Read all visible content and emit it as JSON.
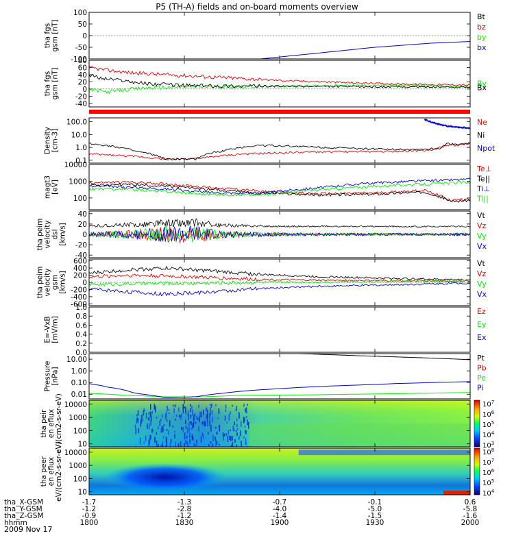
{
  "title": "P5 (TH-A) fields and on-board moments overview",
  "date_label": "2009 Nov 17",
  "colors": {
    "black": "#000000",
    "red": "#dd0000",
    "green": "#00ee00",
    "blue": "#0000cc",
    "axis": "#000000",
    "stripe": "#ff0000"
  },
  "chart_data": [
    {
      "id": "mag-gse",
      "type": "line",
      "ylabel": "tha fgs gsm [nT]",
      "yticks": [
        "100",
        "50",
        "0",
        "-50",
        "-100"
      ],
      "yrange": [
        -100,
        100
      ],
      "scale": "linear",
      "series": [
        {
          "name": "Bt",
          "color": "#000000"
        },
        {
          "name": "bz",
          "color": "#dd0000"
        },
        {
          "name": "by",
          "color": "#00ee00"
        },
        {
          "name": "bx",
          "color": "#0000cc",
          "points": [
            [
              0.45,
              -100
            ],
            [
              0.6,
              -75
            ],
            [
              0.75,
              -50
            ],
            [
              0.9,
              -32
            ],
            [
              1.0,
              -25
            ]
          ]
        }
      ]
    },
    {
      "id": "mag-gsm",
      "type": "line",
      "ylabel": "tha fgs gsm [nT]",
      "yticks": [
        "80",
        "60",
        "40",
        "20",
        "0",
        "-20",
        "-40"
      ],
      "yrange": [
        -50,
        80
      ],
      "scale": "linear",
      "series": [
        {
          "name": "Bt",
          "color": "#dd0000",
          "points": [
            [
              0,
              60
            ],
            [
              0.05,
              52
            ],
            [
              0.1,
              46
            ],
            [
              0.2,
              40
            ],
            [
              0.35,
              32
            ],
            [
              0.5,
              24
            ],
            [
              0.7,
              17
            ],
            [
              0.85,
              13
            ],
            [
              1.0,
              11
            ]
          ]
        },
        {
          "name": "By",
          "color": "#00ee00",
          "points": [
            [
              0,
              -2
            ],
            [
              0.05,
              -8
            ],
            [
              0.1,
              -2
            ],
            [
              0.15,
              3
            ],
            [
              0.25,
              6
            ],
            [
              0.4,
              7
            ],
            [
              0.55,
              8
            ],
            [
              0.7,
              10
            ],
            [
              0.85,
              9
            ],
            [
              1.0,
              7
            ]
          ]
        },
        {
          "name": "Bx",
          "color": "#000000",
          "points": [
            [
              0,
              40
            ],
            [
              0.03,
              30
            ],
            [
              0.08,
              25
            ],
            [
              0.15,
              15
            ],
            [
              0.25,
              10
            ],
            [
              0.4,
              8
            ],
            [
              0.6,
              7
            ],
            [
              0.8,
              6
            ],
            [
              1.0,
              5
            ]
          ]
        }
      ],
      "legend": [
        "By",
        "Bx"
      ]
    },
    {
      "id": "density",
      "type": "line",
      "ylabel": "Density [cm-3]",
      "yticks": [
        "100.0",
        "10.0",
        "1.0",
        "0.1"
      ],
      "yrange": [
        0.06,
        200
      ],
      "scale": "log",
      "series": [
        {
          "name": "Ne",
          "color": "#dd0000",
          "points": [
            [
              0,
              0.3
            ],
            [
              0.1,
              0.22
            ],
            [
              0.2,
              0.12
            ],
            [
              0.3,
              0.15
            ],
            [
              0.4,
              0.3
            ],
            [
              0.6,
              0.45
            ],
            [
              0.8,
              0.5
            ],
            [
              0.9,
              0.6
            ],
            [
              0.93,
              1.2
            ],
            [
              0.96,
              1.5
            ],
            [
              1.0,
              2
            ]
          ]
        },
        {
          "name": "Ni",
          "color": "#000000",
          "points": [
            [
              0,
              2
            ],
            [
              0.05,
              1.4
            ],
            [
              0.12,
              0.5
            ],
            [
              0.2,
              0.12
            ],
            [
              0.28,
              0.12
            ],
            [
              0.36,
              0.6
            ],
            [
              0.45,
              1.5
            ],
            [
              0.55,
              1.2
            ],
            [
              0.7,
              0.8
            ],
            [
              0.85,
              0.7
            ],
            [
              0.92,
              0.8
            ],
            [
              0.94,
              2
            ],
            [
              0.97,
              1.6
            ],
            [
              1.0,
              2.2
            ]
          ]
        },
        {
          "name": "Npot",
          "color": "#0000cc",
          "points": [
            [
              0.88,
              150
            ],
            [
              0.9,
              90
            ],
            [
              0.92,
              60
            ],
            [
              0.94,
              45
            ],
            [
              0.97,
              38
            ],
            [
              1.0,
              32
            ]
          ]
        }
      ]
    },
    {
      "id": "temperature",
      "type": "line",
      "ylabel": "magt3 [eV]",
      "yticks": [
        "10000",
        "1000",
        "100"
      ],
      "yrange": [
        20,
        10000
      ],
      "scale": "log",
      "series": [
        {
          "name": "Te⊥",
          "color": "#dd0000",
          "points": [
            [
              0,
              800
            ],
            [
              0.1,
              900
            ],
            [
              0.2,
              700
            ],
            [
              0.3,
              450
            ],
            [
              0.45,
              250
            ],
            [
              0.6,
              180
            ],
            [
              0.75,
              200
            ],
            [
              0.88,
              280
            ],
            [
              0.92,
              140
            ],
            [
              0.95,
              70
            ],
            [
              1.0,
              90
            ]
          ]
        },
        {
          "name": "Te||",
          "color": "#000000",
          "points": [
            [
              0,
              600
            ],
            [
              0.1,
              650
            ],
            [
              0.2,
              500
            ],
            [
              0.3,
              350
            ],
            [
              0.45,
              200
            ],
            [
              0.6,
              150
            ],
            [
              0.75,
              170
            ],
            [
              0.88,
              230
            ],
            [
              0.92,
              120
            ],
            [
              0.95,
              60
            ],
            [
              1.0,
              75
            ]
          ]
        },
        {
          "name": "Ti⊥",
          "color": "#0000cc",
          "points": [
            [
              0,
              500
            ],
            [
              0.1,
              450
            ],
            [
              0.2,
              350
            ],
            [
              0.3,
              220
            ],
            [
              0.45,
              180
            ],
            [
              0.6,
              400
            ],
            [
              0.75,
              800
            ],
            [
              0.9,
              1100
            ],
            [
              1.0,
              1300
            ]
          ]
        },
        {
          "name": "Ti||",
          "color": "#00ee00",
          "points": [
            [
              0,
              350
            ],
            [
              0.1,
              330
            ],
            [
              0.2,
              250
            ],
            [
              0.3,
              170
            ],
            [
              0.45,
              150
            ],
            [
              0.6,
              300
            ],
            [
              0.75,
              500
            ],
            [
              0.9,
              700
            ],
            [
              1.0,
              900
            ]
          ]
        }
      ]
    },
    {
      "id": "velocity-dsl",
      "type": "line",
      "ylabel": "tha peim velocity dsl [km/s]",
      "yticks": [
        "40",
        "20",
        "0",
        "-20",
        "-40"
      ],
      "yrange": [
        -45,
        45
      ],
      "scale": "linear",
      "series": [
        {
          "name": "Vt",
          "color": "#000000"
        },
        {
          "name": "Vz",
          "color": "#dd0000"
        },
        {
          "name": "Vy",
          "color": "#00ee00"
        },
        {
          "name": "Vx",
          "color": "#0000cc"
        }
      ]
    },
    {
      "id": "velocity-gsm",
      "type": "line",
      "ylabel": "tha peim velocity gsm [km/s]",
      "yticks": [
        "600",
        "400",
        "200",
        "0",
        "-200",
        "-400",
        "-600"
      ],
      "yrange": [
        -650,
        650
      ],
      "scale": "linear",
      "series": [
        {
          "name": "Vt",
          "color": "#000000",
          "points": [
            [
              0,
              250
            ],
            [
              0.1,
              350
            ],
            [
              0.2,
              400
            ],
            [
              0.3,
              330
            ],
            [
              0.45,
              220
            ],
            [
              0.6,
              160
            ],
            [
              0.75,
              120
            ],
            [
              0.9,
              90
            ],
            [
              1.0,
              70
            ]
          ]
        },
        {
          "name": "Vz",
          "color": "#dd0000",
          "points": [
            [
              0,
              150
            ],
            [
              0.1,
              200
            ],
            [
              0.2,
              180
            ],
            [
              0.3,
              140
            ],
            [
              0.45,
              80
            ],
            [
              0.6,
              60
            ],
            [
              0.75,
              50
            ],
            [
              0.9,
              40
            ],
            [
              1.0,
              30
            ]
          ]
        },
        {
          "name": "Vy",
          "color": "#00ee00",
          "points": [
            [
              0,
              -60
            ],
            [
              0.1,
              -40
            ],
            [
              0.2,
              -30
            ],
            [
              0.3,
              -20
            ],
            [
              0.45,
              0
            ],
            [
              0.6,
              10
            ],
            [
              0.75,
              20
            ],
            [
              0.9,
              30
            ],
            [
              1.0,
              40
            ]
          ]
        },
        {
          "name": "Vx",
          "color": "#0000cc",
          "points": [
            [
              0,
              -180
            ],
            [
              0.1,
              -260
            ],
            [
              0.2,
              -330
            ],
            [
              0.3,
              -280
            ],
            [
              0.45,
              -170
            ],
            [
              0.6,
              -110
            ],
            [
              0.75,
              -80
            ],
            [
              0.9,
              -40
            ],
            [
              1.0,
              -20
            ]
          ]
        }
      ]
    },
    {
      "id": "efield",
      "type": "line",
      "ylabel": "E=-VxB [mV/m]",
      "yticks": [
        "1.0",
        "0.8",
        "0.6",
        "0.4",
        "0.2",
        "0.0"
      ],
      "yrange": [
        0,
        1
      ],
      "scale": "linear",
      "series": [
        {
          "name": "Ez",
          "color": "#dd0000"
        },
        {
          "name": "Ey",
          "color": "#00ee00"
        },
        {
          "name": "Ex",
          "color": "#0000cc"
        }
      ]
    },
    {
      "id": "pressure",
      "type": "line",
      "ylabel": "Pressure [nPa]",
      "yticks": [
        "10.00",
        "1.00",
        "0.10",
        "0.01"
      ],
      "yrange": [
        0.004,
        30
      ],
      "scale": "log",
      "series": [
        {
          "name": "Pt",
          "color": "#000000",
          "points": [
            [
              0.55,
              30
            ],
            [
              0.7,
              20
            ],
            [
              0.85,
              14
            ],
            [
              1.0,
              9
            ]
          ]
        },
        {
          "name": "Pb",
          "color": "#dd0000"
        },
        {
          "name": "Pe",
          "color": "#00ee00",
          "points": [
            [
              0,
              0.012
            ],
            [
              0.1,
              0.008
            ],
            [
              0.2,
              0.006
            ],
            [
              0.3,
              0.006
            ],
            [
              0.4,
              0.008
            ],
            [
              0.6,
              0.009
            ],
            [
              0.8,
              0.011
            ],
            [
              1.0,
              0.014
            ]
          ]
        },
        {
          "name": "Pi",
          "color": "#0000cc",
          "points": [
            [
              0,
              0.08
            ],
            [
              0.05,
              0.04
            ],
            [
              0.12,
              0.012
            ],
            [
              0.2,
              0.005
            ],
            [
              0.28,
              0.006
            ],
            [
              0.35,
              0.012
            ],
            [
              0.5,
              0.03
            ],
            [
              0.7,
              0.06
            ],
            [
              0.85,
              0.09
            ],
            [
              1.0,
              0.12
            ]
          ]
        }
      ]
    },
    {
      "id": "ion-spectrogram",
      "type": "heatmap",
      "ylabel": "tha peir en eflux eV/(cm2-s-sr-eV)",
      "yticks": [
        "10000",
        "1000",
        "100",
        "10"
      ],
      "colorbar_labels": [
        "10^7",
        "10^6",
        "10^5",
        "10^4",
        "10^3"
      ]
    },
    {
      "id": "electron-spectrogram",
      "type": "heatmap",
      "ylabel": "tha peer en eflux eV/(cm2-s-sr-eV)",
      "yticks": [
        "10000",
        "1000",
        "100",
        "10"
      ],
      "colorbar_labels": [
        "10^8",
        "10^7",
        "10^6",
        "10^5",
        "10^4"
      ]
    }
  ],
  "x_axis": {
    "rows": [
      {
        "label": "tha_X-GSM",
        "values": [
          "-1.7",
          "-1.3",
          "-0.7",
          "-0.1",
          "0.6"
        ]
      },
      {
        "label": "tha_Y-GSM",
        "values": [
          "-1.2",
          "-2.8",
          "-4.0",
          "-5.0",
          "-5.8"
        ]
      },
      {
        "label": "tha_Z-GSM",
        "values": [
          "-0.9",
          "-1.2",
          "-1.4",
          "-1.5",
          "-1.6"
        ]
      },
      {
        "label": "hhmm",
        "values": [
          "1800",
          "1830",
          "1900",
          "1930",
          "2000"
        ]
      }
    ]
  }
}
